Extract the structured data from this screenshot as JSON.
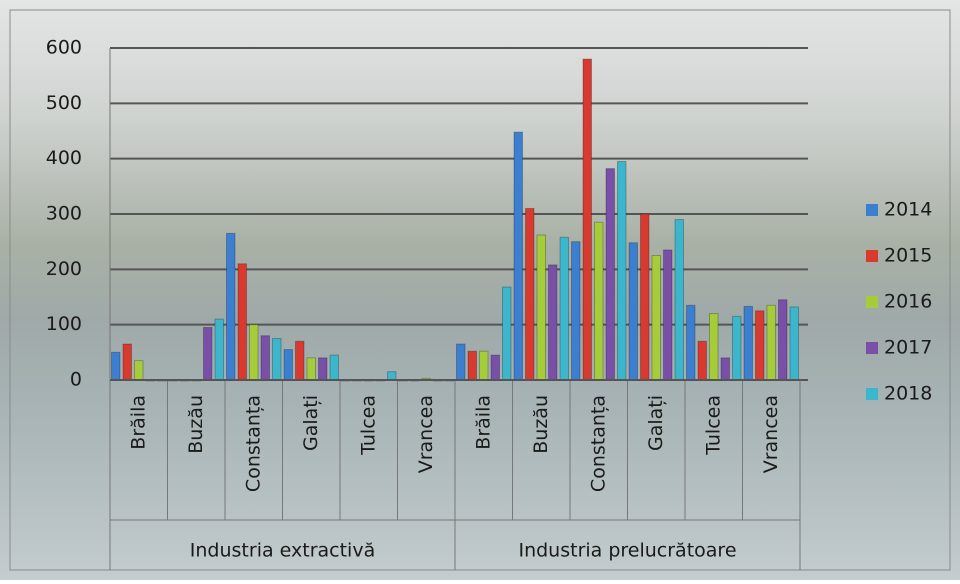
{
  "chart_data": {
    "type": "bar",
    "groups": [
      {
        "name": "Industria extractivă",
        "categories": [
          "Brăila",
          "Buzău",
          "Constanța",
          "Galați",
          "Tulcea",
          "Vrancea"
        ]
      },
      {
        "name": "Industria prelucrătoare",
        "categories": [
          "Brăila",
          "Buzău",
          "Constanța",
          "Galați",
          "Tulcea",
          "Vrancea"
        ]
      }
    ],
    "series": [
      {
        "name": "2014",
        "color": "#3c7fd0",
        "values": [
          50,
          0,
          265,
          55,
          0,
          0,
          65,
          448,
          250,
          248,
          135,
          133
        ]
      },
      {
        "name": "2015",
        "color": "#d93a30",
        "values": [
          65,
          0,
          210,
          70,
          0,
          0,
          52,
          310,
          580,
          300,
          70,
          125
        ]
      },
      {
        "name": "2016",
        "color": "#a6cc3a",
        "values": [
          35,
          0,
          100,
          40,
          0,
          3,
          52,
          262,
          285,
          225,
          120,
          135
        ]
      },
      {
        "name": "2017",
        "color": "#7a4fa8",
        "values": [
          0,
          95,
          80,
          40,
          0,
          0,
          45,
          208,
          382,
          235,
          40,
          145
        ]
      },
      {
        "name": "2018",
        "color": "#3bb6cc",
        "values": [
          0,
          110,
          75,
          45,
          15,
          0,
          168,
          258,
          395,
          290,
          115,
          132
        ]
      }
    ],
    "ylim": [
      0,
      600
    ],
    "yticks": [
      0,
      100,
      200,
      300,
      400,
      500,
      600
    ],
    "grid": true,
    "legend": "right"
  }
}
